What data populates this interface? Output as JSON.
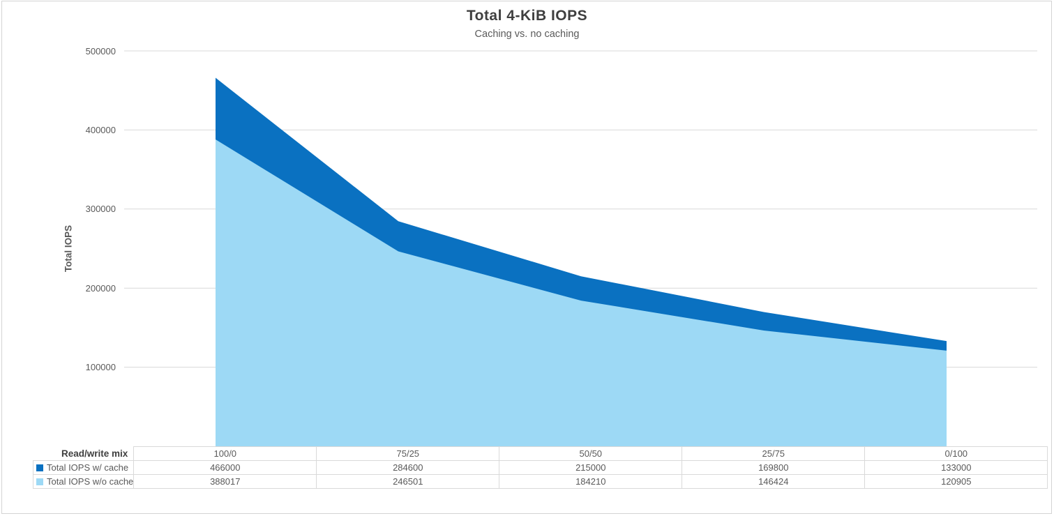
{
  "chart_data": {
    "type": "area",
    "title": "Total 4-KiB IOPS",
    "subtitle": "Caching vs. no caching",
    "ylabel": "Total IOPS",
    "row_header": "Read/write mix",
    "categories": [
      "100/0",
      "75/25",
      "50/50",
      "25/75",
      "0/100"
    ],
    "series": [
      {
        "name": "Total IOPS w/ cache",
        "color": "#0a71c1",
        "values": [
          466000,
          284600,
          215000,
          169800,
          133000
        ]
      },
      {
        "name": "Total IOPS w/o cache",
        "color": "#9dd9f5",
        "values": [
          388017,
          246501,
          184210,
          146424,
          120905
        ]
      }
    ],
    "ylim": [
      0,
      500000
    ],
    "y_ticks": [
      100000,
      200000,
      300000,
      400000,
      500000
    ],
    "grid": "horizontal gridlines on",
    "legend_position": "data-table left column"
  },
  "colors": {
    "gridline": "#d9d9d9",
    "table_border": "#d9d9d9",
    "frame_border": "#d4d4d4",
    "title_text": "#3f3f3f",
    "body_text": "#595959"
  }
}
